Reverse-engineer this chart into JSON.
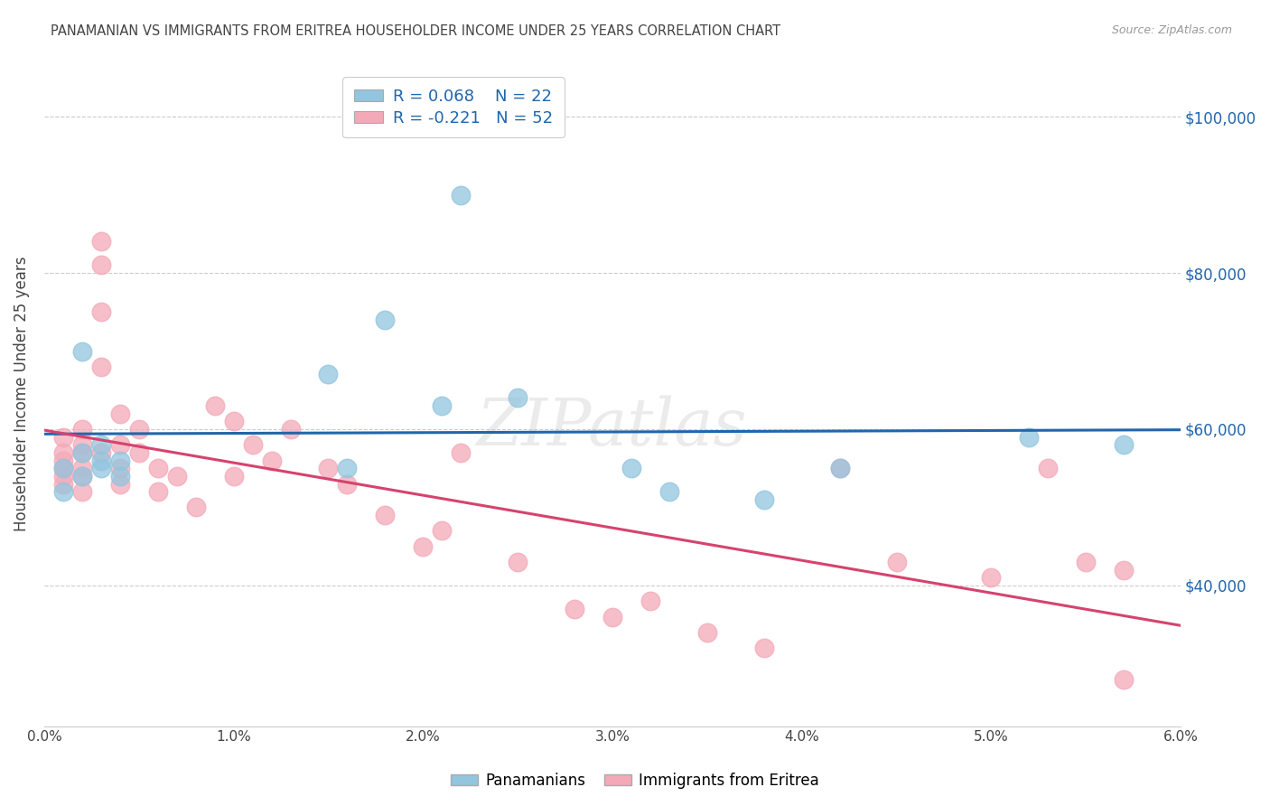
{
  "title": "PANAMANIAN VS IMMIGRANTS FROM ERITREA HOUSEHOLDER INCOME UNDER 25 YEARS CORRELATION CHART",
  "source": "Source: ZipAtlas.com",
  "ylabel": "Householder Income Under 25 years",
  "xlim": [
    0,
    0.06
  ],
  "ylim": [
    22000,
    107000
  ],
  "xtick_values": [
    0.0,
    0.01,
    0.02,
    0.03,
    0.04,
    0.05,
    0.06
  ],
  "xtick_labels": [
    "0.0%",
    "1.0%",
    "2.0%",
    "3.0%",
    "4.0%",
    "5.0%",
    "6.0%"
  ],
  "ytick_values": [
    40000,
    60000,
    80000,
    100000
  ],
  "ytick_labels": [
    "$40,000",
    "$60,000",
    "$80,000",
    "$100,000"
  ],
  "legend_labels": [
    "Panamanians",
    "Immigrants from Eritrea"
  ],
  "blue_color": "#92c5de",
  "pink_color": "#f4a9b8",
  "blue_line_color": "#2166ac",
  "pink_line_color": "#d6436e",
  "blue_text_color": "#2166ac",
  "text_color": "#444444",
  "watermark": "ZIPatlas",
  "grid_color": "#cccccc",
  "background_color": "#ffffff",
  "pan_x": [
    0.001,
    0.001,
    0.002,
    0.002,
    0.002,
    0.003,
    0.003,
    0.003,
    0.004,
    0.004,
    0.015,
    0.016,
    0.018,
    0.021,
    0.022,
    0.025,
    0.031,
    0.033,
    0.038,
    0.042,
    0.052,
    0.057
  ],
  "pan_y": [
    55000,
    52000,
    57000,
    54000,
    70000,
    56000,
    58000,
    55000,
    56000,
    54000,
    67000,
    55000,
    74000,
    63000,
    90000,
    64000,
    55000,
    52000,
    51000,
    55000,
    59000,
    58000
  ],
  "eri_x": [
    0.001,
    0.001,
    0.001,
    0.001,
    0.001,
    0.001,
    0.002,
    0.002,
    0.002,
    0.002,
    0.002,
    0.002,
    0.003,
    0.003,
    0.003,
    0.003,
    0.003,
    0.004,
    0.004,
    0.004,
    0.004,
    0.005,
    0.005,
    0.006,
    0.006,
    0.007,
    0.008,
    0.009,
    0.01,
    0.01,
    0.011,
    0.012,
    0.013,
    0.015,
    0.016,
    0.018,
    0.02,
    0.021,
    0.022,
    0.025,
    0.028,
    0.03,
    0.032,
    0.035,
    0.038,
    0.042,
    0.045,
    0.05,
    0.053,
    0.055,
    0.057,
    0.057
  ],
  "eri_y": [
    57000,
    54000,
    56000,
    53000,
    55000,
    59000,
    58000,
    55000,
    60000,
    57000,
    54000,
    52000,
    84000,
    81000,
    75000,
    68000,
    57000,
    62000,
    58000,
    55000,
    53000,
    60000,
    57000,
    55000,
    52000,
    54000,
    50000,
    63000,
    61000,
    54000,
    58000,
    56000,
    60000,
    55000,
    53000,
    49000,
    45000,
    47000,
    57000,
    43000,
    37000,
    36000,
    38000,
    34000,
    32000,
    55000,
    43000,
    41000,
    55000,
    43000,
    42000,
    28000
  ]
}
